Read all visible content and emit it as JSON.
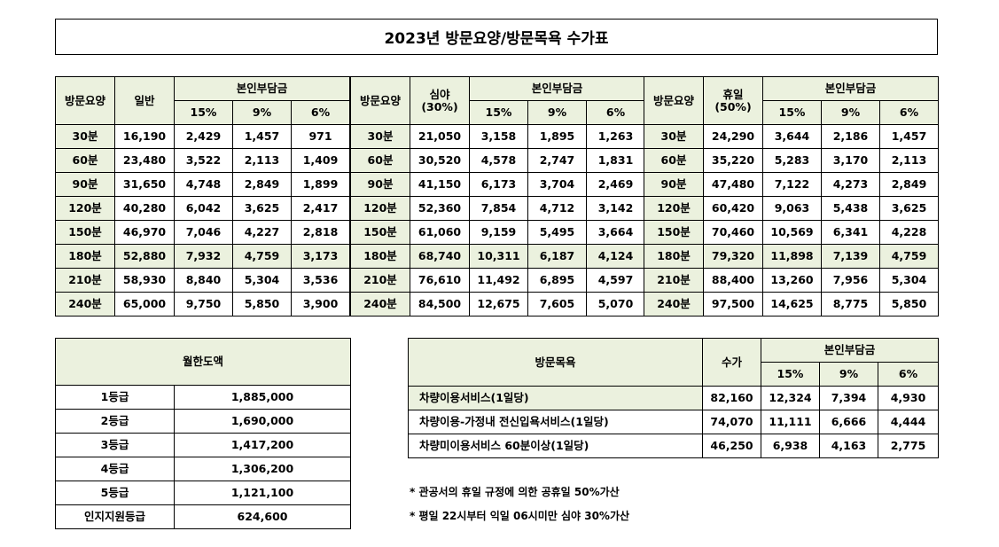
{
  "title": "2023년 방문요양/방문목욕 수가표",
  "main": {
    "groups": [
      {
        "label": "방문요양",
        "base_header": "일반",
        "copay_header": "본인부담금",
        "rates": [
          "15%",
          "9%",
          "6%"
        ],
        "rows": [
          [
            "30분",
            "16,190",
            "2,429",
            "1,457",
            "971"
          ],
          [
            "60분",
            "23,480",
            "3,522",
            "2,113",
            "1,409"
          ],
          [
            "90분",
            "31,650",
            "4,748",
            "2,849",
            "1,899"
          ],
          [
            "120분",
            "40,280",
            "6,042",
            "3,625",
            "2,417"
          ],
          [
            "150분",
            "46,970",
            "7,046",
            "4,227",
            "2,818"
          ],
          [
            "180분",
            "52,880",
            "7,932",
            "4,759",
            "3,173"
          ],
          [
            "210분",
            "58,930",
            "8,840",
            "5,304",
            "3,536"
          ],
          [
            "240분",
            "65,000",
            "9,750",
            "5,850",
            "3,900"
          ]
        ]
      },
      {
        "label": "방문요양",
        "base_header": "심야\n(30%)",
        "copay_header": "본인부담금",
        "rates": [
          "15%",
          "9%",
          "6%"
        ],
        "rows": [
          [
            "30분",
            "21,050",
            "3,158",
            "1,895",
            "1,263"
          ],
          [
            "60분",
            "30,520",
            "4,578",
            "2,747",
            "1,831"
          ],
          [
            "90분",
            "41,150",
            "6,173",
            "3,704",
            "2,469"
          ],
          [
            "120분",
            "52,360",
            "7,854",
            "4,712",
            "3,142"
          ],
          [
            "150분",
            "61,060",
            "9,159",
            "5,495",
            "3,664"
          ],
          [
            "180분",
            "68,740",
            "10,311",
            "6,187",
            "4,124"
          ],
          [
            "210분",
            "76,610",
            "11,492",
            "6,895",
            "4,597"
          ],
          [
            "240분",
            "84,500",
            "12,675",
            "7,605",
            "5,070"
          ]
        ]
      },
      {
        "label": "방문요양",
        "base_header": "휴일\n(50%)",
        "copay_header": "본인부담금",
        "rates": [
          "15%",
          "9%",
          "6%"
        ],
        "rows": [
          [
            "30분",
            "24,290",
            "3,644",
            "2,186",
            "1,457"
          ],
          [
            "60분",
            "35,220",
            "5,283",
            "3,170",
            "2,113"
          ],
          [
            "90분",
            "47,480",
            "7,122",
            "4,273",
            "2,849"
          ],
          [
            "120분",
            "60,420",
            "9,063",
            "5,438",
            "3,625"
          ],
          [
            "150분",
            "70,460",
            "10,569",
            "6,341",
            "4,228"
          ],
          [
            "180분",
            "79,320",
            "11,898",
            "7,139",
            "4,759"
          ],
          [
            "210분",
            "88,400",
            "13,260",
            "7,956",
            "5,304"
          ],
          [
            "240분",
            "97,500",
            "14,625",
            "8,775",
            "5,850"
          ]
        ]
      }
    ],
    "shade_color": "#ebf1de"
  },
  "monthly": {
    "header": "월한도액",
    "rows": [
      [
        "1등급",
        "1,885,000"
      ],
      [
        "2등급",
        "1,690,000"
      ],
      [
        "3등급",
        "1,417,200"
      ],
      [
        "4등급",
        "1,306,200"
      ],
      [
        "5등급",
        "1,121,100"
      ],
      [
        "인지지원등급",
        "624,600"
      ]
    ]
  },
  "bath": {
    "header": "방문목욕",
    "fee_header": "수가",
    "copay_header": "본인부담금",
    "rates": [
      "15%",
      "9%",
      "6%"
    ],
    "rows": [
      [
        "차량이용서비스(1일당)",
        "82,160",
        "12,324",
        "7,394",
        "4,930"
      ],
      [
        "차량이용-가정내 전신입욕서비스(1일당)",
        "74,070",
        "11,111",
        "6,666",
        "4,444"
      ],
      [
        "차량미이용서비스 60분이상(1일당)",
        "46,250",
        "6,938",
        "4,163",
        "2,775"
      ]
    ]
  },
  "notes": [
    "* 관공서의 휴일 규정에 의한 공휴일 50%가산",
    "* 평일 22시부터 익일 06시미만 심야 30%가산"
  ]
}
